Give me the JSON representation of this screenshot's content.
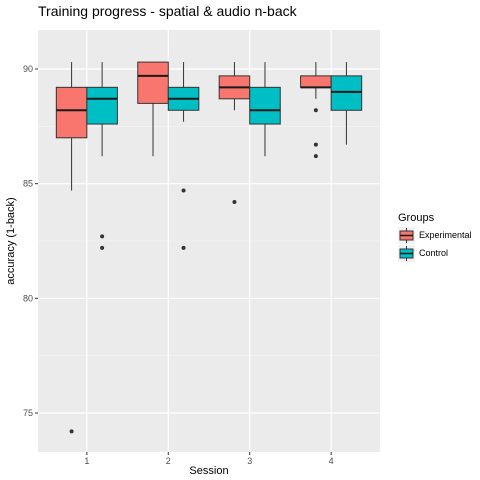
{
  "chart_data": {
    "type": "boxplot",
    "title": "Training progress - spatial & audio n-back",
    "xlabel": "Session",
    "ylabel": "accuracy (1-back)",
    "categories": [
      "1",
      "2",
      "3",
      "4"
    ],
    "y_ticks": [
      75,
      80,
      85,
      90
    ],
    "ylim": [
      73.3,
      91.7
    ],
    "grid": true,
    "legend": {
      "title": "Groups",
      "placement": "right"
    },
    "series": [
      {
        "name": "Experimental",
        "color": "#F8766D",
        "boxes": [
          {
            "category": "1",
            "low": 84.7,
            "q1": 87.0,
            "median": 88.2,
            "q3": 89.2,
            "high": 90.3,
            "outliers": [
              74.2
            ]
          },
          {
            "category": "2",
            "low": 86.2,
            "q1": 88.5,
            "median": 89.7,
            "q3": 90.3,
            "high": 90.3,
            "outliers": []
          },
          {
            "category": "3",
            "low": 88.2,
            "q1": 88.7,
            "median": 89.2,
            "q3": 89.7,
            "high": 90.3,
            "outliers": [
              84.2
            ]
          },
          {
            "category": "4",
            "low": 88.7,
            "q1": 89.2,
            "median": 89.2,
            "q3": 89.7,
            "high": 90.3,
            "outliers": [
              88.2,
              86.7,
              86.2
            ]
          }
        ]
      },
      {
        "name": "Control",
        "color": "#00BFC4",
        "boxes": [
          {
            "category": "1",
            "low": 86.2,
            "q1": 87.6,
            "median": 88.7,
            "q3": 89.2,
            "high": 90.3,
            "outliers": [
              82.7,
              82.2
            ]
          },
          {
            "category": "2",
            "low": 87.7,
            "q1": 88.2,
            "median": 88.7,
            "q3": 89.2,
            "high": 90.3,
            "outliers": [
              84.7,
              82.2
            ]
          },
          {
            "category": "3",
            "low": 86.2,
            "q1": 87.6,
            "median": 88.2,
            "q3": 89.2,
            "high": 90.3,
            "outliers": []
          },
          {
            "category": "4",
            "low": 86.7,
            "q1": 88.2,
            "median": 89.0,
            "q3": 89.7,
            "high": 90.3,
            "outliers": []
          }
        ]
      }
    ]
  }
}
